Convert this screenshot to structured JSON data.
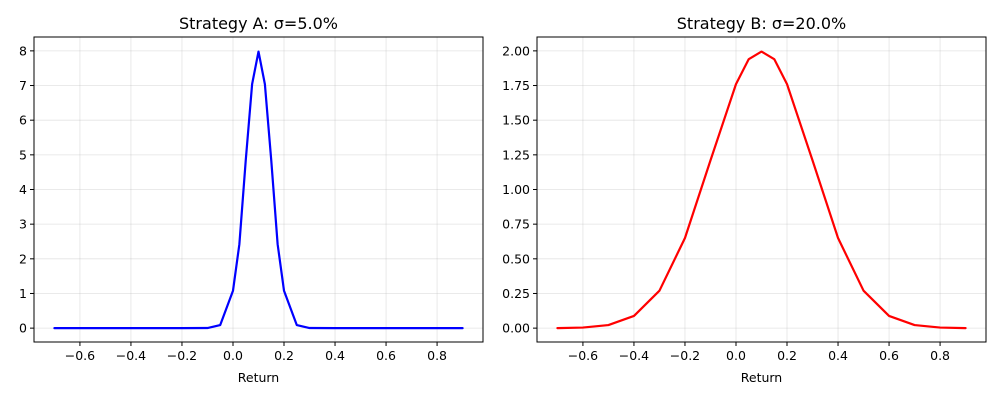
{
  "chart_data": [
    {
      "type": "line",
      "title": "Strategy A: σ=5.0%",
      "xlabel": "Return",
      "ylabel": "",
      "xlim": [
        -0.78,
        0.98
      ],
      "ylim": [
        -0.4,
        8.4
      ],
      "xticks": [
        -0.6,
        -0.4,
        -0.2,
        0.0,
        0.2,
        0.4,
        0.6,
        0.8
      ],
      "xtick_labels": [
        "−0.6",
        "−0.4",
        "−0.2",
        "0.0",
        "0.2",
        "0.4",
        "0.6",
        "0.8"
      ],
      "yticks": [
        0,
        1,
        2,
        3,
        4,
        5,
        6,
        7,
        8
      ],
      "ytick_labels": [
        "0",
        "1",
        "2",
        "3",
        "4",
        "5",
        "6",
        "7",
        "8"
      ],
      "grid": true,
      "color": "#0000ff",
      "series": [
        {
          "x": [
            -0.7,
            -0.2,
            -0.1,
            -0.05,
            0.0,
            0.025,
            0.05,
            0.075,
            0.1,
            0.125,
            0.15,
            0.175,
            0.2,
            0.25,
            0.3,
            0.4,
            0.9
          ],
          "y": [
            0.0,
            0.0,
            0.003,
            0.09,
            1.08,
            2.42,
            4.84,
            7.04,
            7.98,
            7.04,
            4.84,
            2.42,
            1.08,
            0.09,
            0.003,
            0.0,
            0.0
          ]
        }
      ]
    },
    {
      "type": "line",
      "title": "Strategy B: σ=20.0%",
      "xlabel": "Return",
      "ylabel": "",
      "xlim": [
        -0.78,
        0.98
      ],
      "ylim": [
        -0.1,
        2.1
      ],
      "xticks": [
        -0.6,
        -0.4,
        -0.2,
        0.0,
        0.2,
        0.4,
        0.6,
        0.8
      ],
      "xtick_labels": [
        "−0.6",
        "−0.4",
        "−0.2",
        "0.0",
        "0.2",
        "0.4",
        "0.6",
        "0.8"
      ],
      "yticks": [
        0.0,
        0.25,
        0.5,
        0.75,
        1.0,
        1.25,
        1.5,
        1.75,
        2.0
      ],
      "ytick_labels": [
        "0.00",
        "0.25",
        "0.50",
        "0.75",
        "1.00",
        "1.25",
        "1.50",
        "1.75",
        "2.00"
      ],
      "grid": true,
      "color": "#ff0000",
      "series": [
        {
          "x": [
            -0.7,
            -0.6,
            -0.5,
            -0.4,
            -0.3,
            -0.2,
            -0.1,
            0.0,
            0.05,
            0.1,
            0.15,
            0.2,
            0.3,
            0.4,
            0.5,
            0.6,
            0.7,
            0.8,
            0.9
          ],
          "y": [
            0.0003,
            0.004,
            0.022,
            0.088,
            0.27,
            0.65,
            1.21,
            1.76,
            1.94,
            1.995,
            1.94,
            1.76,
            1.21,
            0.65,
            0.27,
            0.088,
            0.022,
            0.004,
            0.0003
          ]
        }
      ]
    }
  ]
}
